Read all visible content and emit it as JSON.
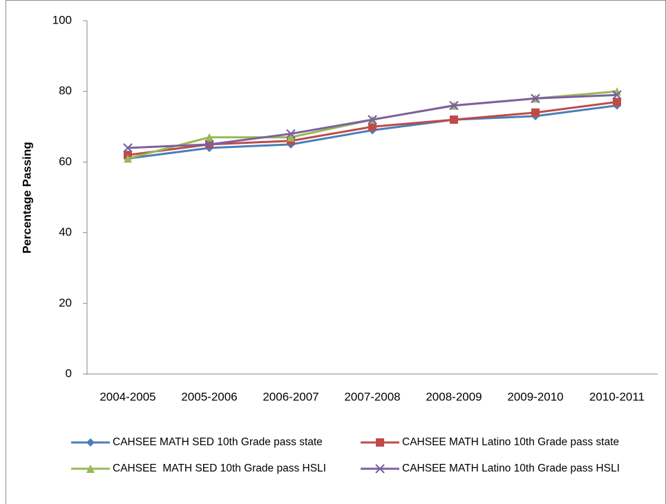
{
  "chart_data": {
    "type": "line",
    "y_label": "Percentage Passing",
    "categories": [
      "2004-2005",
      "2005-2006",
      "2006-2007",
      "2007-2008",
      "2008-2009",
      "2009-2010",
      "2010-2011"
    ],
    "series": [
      {
        "name": "CAHSEE MATH SED 10th Grade pass state",
        "color": "#4a7ebb",
        "marker": "diamond",
        "values": [
          61,
          64,
          65,
          69,
          72,
          73,
          76
        ]
      },
      {
        "name": "CAHSEE MATH Latino 10th Grade pass state",
        "color": "#be4b48",
        "marker": "square",
        "values": [
          62,
          65,
          66,
          70,
          72,
          74,
          77
        ]
      },
      {
        "name": "CAHSEE  MATH SED 10th Grade pass HSLI",
        "color": "#98b954",
        "marker": "triangle",
        "values": [
          61,
          67,
          67,
          72,
          76,
          78,
          80
        ]
      },
      {
        "name": "CAHSEE MATH Latino 10th Grade pass HSLI",
        "color": "#7d60a0",
        "marker": "x",
        "values": [
          64,
          65,
          68,
          72,
          76,
          78,
          79
        ]
      }
    ],
    "ylim": [
      0,
      100
    ],
    "yticks": [
      0,
      20,
      40,
      60,
      80,
      100
    ],
    "legend": "bottom"
  }
}
